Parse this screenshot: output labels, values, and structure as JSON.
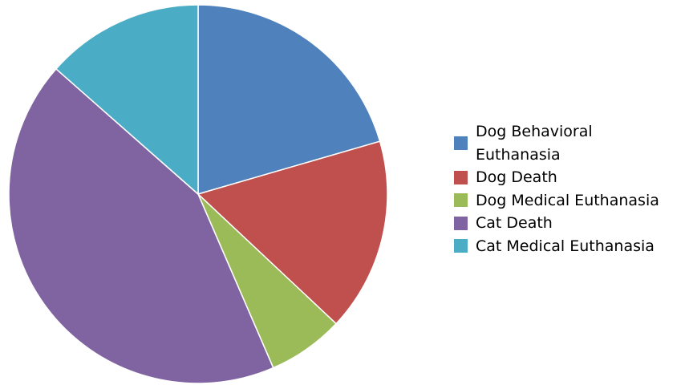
{
  "chart_data": {
    "type": "pie",
    "title": "",
    "legend_position": "right",
    "slices": [
      {
        "label": "Dog Behavioral Euthanasia",
        "value": 20.5,
        "color": "#4F81BD"
      },
      {
        "label": "Dog Death",
        "value": 16.5,
        "color": "#C0504D"
      },
      {
        "label": "Dog Medical Euthanasia",
        "value": 6.5,
        "color": "#9BBB59"
      },
      {
        "label": "Cat Death",
        "value": 43.0,
        "color": "#8064A2"
      },
      {
        "label": "Cat Medical Euthanasia",
        "value": 13.5,
        "color": "#4BACC6"
      }
    ]
  }
}
